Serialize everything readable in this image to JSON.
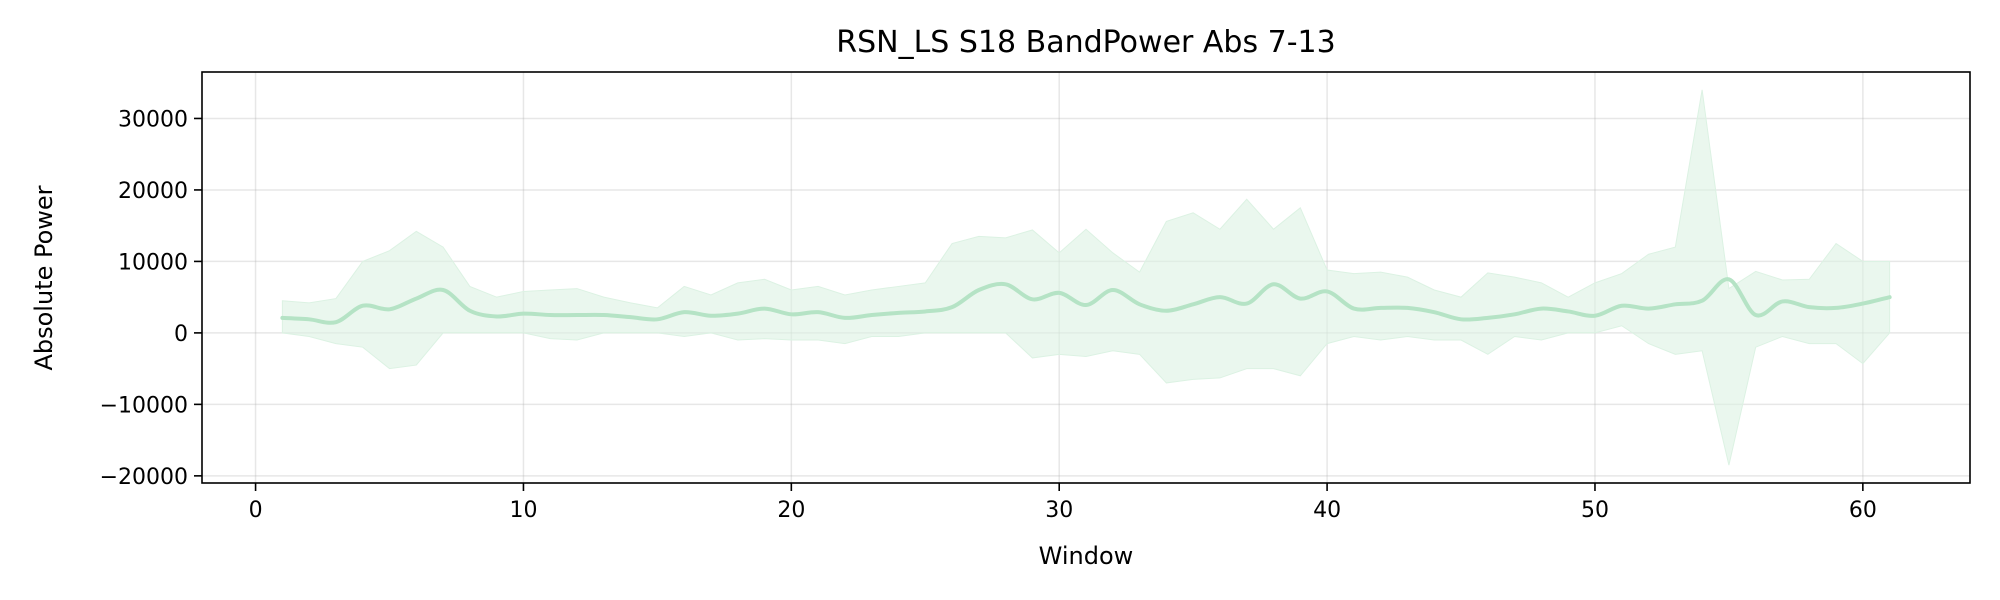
{
  "chart_data": {
    "type": "line",
    "title": "RSN_LS S18 BandPower Abs 7-13",
    "xlabel": "Window",
    "ylabel": "Absolute Power",
    "xlim": [
      -2,
      64
    ],
    "ylim": [
      -21000,
      36500
    ],
    "xticks": [
      0,
      10,
      20,
      30,
      40,
      50,
      60
    ],
    "yticks": [
      -20000,
      -10000,
      0,
      10000,
      20000,
      30000
    ],
    "ytick_labels": [
      "−20000",
      "−10000",
      "0",
      "10000",
      "20000",
      "30000"
    ],
    "grid": true,
    "line_color": "#b5e3c5",
    "band_color": "#dcf2e3",
    "series": [
      {
        "x": [
          1,
          2,
          3,
          4,
          5,
          6,
          7,
          8,
          9,
          10,
          11,
          12,
          13,
          14,
          15,
          16,
          17,
          18,
          19,
          20,
          21,
          22,
          23,
          24,
          25,
          26,
          27,
          28,
          29,
          30,
          31,
          32,
          33,
          34,
          35,
          36,
          37,
          38,
          39,
          40,
          41,
          42,
          43,
          44,
          45,
          46,
          47,
          48,
          49,
          50,
          51,
          52,
          53,
          54,
          55,
          56,
          57,
          58,
          59,
          60,
          61
        ],
        "mean": [
          2100,
          1900,
          1500,
          3800,
          3300,
          4800,
          6000,
          3100,
          2300,
          2700,
          2500,
          2500,
          2500,
          2200,
          1900,
          2900,
          2400,
          2700,
          3400,
          2600,
          2900,
          2100,
          2500,
          2800,
          3000,
          3600,
          6000,
          6800,
          4700,
          5600,
          3900,
          6000,
          4000,
          3100,
          4000,
          5000,
          4100,
          6800,
          4800,
          5800,
          3400,
          3500,
          3500,
          2900,
          1900,
          2100,
          2600,
          3400,
          3000,
          2400,
          3800,
          3400,
          4000,
          4500,
          7500,
          2500,
          4400,
          3600,
          3500,
          4100,
          5000
        ],
        "upper": [
          4500,
          4200,
          4800,
          10000,
          11500,
          14200,
          12000,
          6500,
          5000,
          5800,
          6000,
          6200,
          5000,
          4200,
          3500,
          6500,
          5300,
          7000,
          7500,
          6000,
          6500,
          5300,
          6000,
          6500,
          7000,
          12500,
          13500,
          13300,
          14400,
          11200,
          14500,
          11200,
          8500,
          15600,
          16800,
          14500,
          18700,
          14500,
          17500,
          8800,
          8300,
          8500,
          7800,
          6000,
          5000,
          8400,
          7800,
          7000,
          5000,
          7000,
          8300,
          11000,
          12000,
          34000,
          6200,
          8600,
          7400,
          7500,
          12500,
          10000,
          10000
        ],
        "lower": [
          0,
          -500,
          -1500,
          -2000,
          -5000,
          -4500,
          0,
          0,
          0,
          0,
          -800,
          -1000,
          0,
          0,
          0,
          -500,
          0,
          -1000,
          -800,
          -1000,
          -1000,
          -1500,
          -500,
          -500,
          0,
          0,
          0,
          0,
          -3500,
          -3000,
          -3300,
          -2500,
          -3000,
          -7000,
          -6500,
          -6300,
          -5000,
          -5000,
          -6000,
          -1500,
          -500,
          -1000,
          -500,
          -1000,
          -1000,
          -3000,
          -500,
          -1000,
          0,
          0,
          1000,
          -1500,
          -3000,
          -2500,
          -18500,
          -2000,
          -500,
          -1500,
          -1500,
          -4300,
          0
        ]
      }
    ]
  }
}
